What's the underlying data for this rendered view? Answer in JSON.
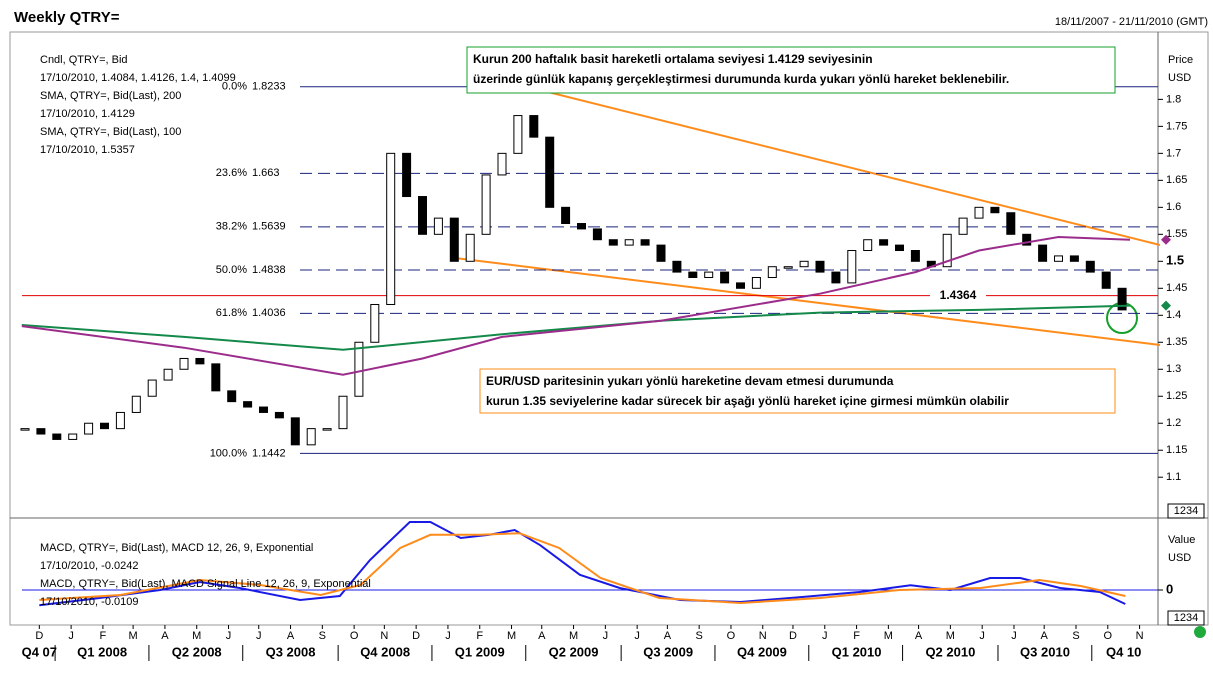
{
  "chart_data": [
    {
      "type": "candlestick",
      "title": "Weekly QTRY=",
      "subtitle": "18/11/2007 - 21/11/2010 (GMT)",
      "ylabel": "Price",
      "yunit": "USD",
      "box_label": "1234",
      "ylim": [
        1.03,
        1.91
      ],
      "yticks": [
        1.1,
        1.15,
        1.2,
        1.25,
        1.3,
        1.35,
        1.4,
        1.45,
        1.5,
        1.55,
        1.6,
        1.65,
        1.7,
        1.75,
        1.8
      ],
      "series": [
        {
          "name": "Cndl, QTRY=, Bid",
          "detail": "17/10/2010, 1.4084, 1.4126, 1.4, 1.4099",
          "color": "#000000",
          "values": [
            1.19,
            1.18,
            1.17,
            1.18,
            1.2,
            1.19,
            1.22,
            1.25,
            1.28,
            1.3,
            1.32,
            1.31,
            1.26,
            1.24,
            1.23,
            1.22,
            1.21,
            1.16,
            1.19,
            1.19,
            1.25,
            1.35,
            1.42,
            1.7,
            1.62,
            1.55,
            1.58,
            1.5,
            1.55,
            1.66,
            1.7,
            1.77,
            1.73,
            1.6,
            1.57,
            1.56,
            1.54,
            1.53,
            1.54,
            1.53,
            1.5,
            1.48,
            1.47,
            1.48,
            1.46,
            1.45,
            1.47,
            1.49,
            1.49,
            1.5,
            1.48,
            1.46,
            1.52,
            1.54,
            1.53,
            1.52,
            1.5,
            1.49,
            1.55,
            1.58,
            1.6,
            1.59,
            1.55,
            1.53,
            1.5,
            1.51,
            1.5,
            1.48,
            1.45,
            1.41
          ]
        },
        {
          "name": "SMA, QTRY=, Bid(Last), 200",
          "detail": "17/10/2010, 1.4129",
          "color": "#14894a",
          "x": [
            -0.2,
            10,
            20,
            30,
            40,
            50,
            60,
            69.5
          ],
          "values": [
            1.382,
            1.36,
            1.336,
            1.365,
            1.39,
            1.405,
            1.41,
            1.418
          ]
        },
        {
          "name": "SMA, QTRY=, Bid(Last), 100",
          "detail": "17/10/2010, 1.5357",
          "color": "#9b2c8c",
          "x": [
            -0.2,
            10,
            20,
            25,
            30,
            40,
            50,
            56,
            60,
            65,
            69.5
          ],
          "values": [
            1.38,
            1.34,
            1.29,
            1.32,
            1.36,
            1.39,
            1.44,
            1.48,
            1.52,
            1.545,
            1.54
          ]
        }
      ],
      "fibonacci": [
        {
          "pct": "0.0%",
          "value": 1.8233
        },
        {
          "pct": "23.6%",
          "value": 1.663
        },
        {
          "pct": "38.2%",
          "value": 1.5639
        },
        {
          "pct": "50.0%",
          "value": 1.4838
        },
        {
          "pct": "61.8%",
          "value": 1.4036
        },
        {
          "pct": "100.0%",
          "value": 1.1442
        }
      ],
      "reference_line": {
        "value": 1.4364,
        "color": "#e00000"
      },
      "annotations": [
        {
          "lines": [
            "Kurun 200 haftalık basit hareketli ortalama seviyesi 1.4129 seviyesinin",
            "üzerinde günlük kapanış gerçekleştirmesi durumunda kurda yukarı yönlü hareket beklenebilir."
          ],
          "color": "#14a02a"
        },
        {
          "lines": [
            "EUR/USD paritesinin yukarı yönlü hareketine devam etmesi durumunda",
            "kurun 1.35  seviyelerine kadar sürecek bir aşağı yönlü hareket içine girmesi mümkün olabilir"
          ],
          "color": "#ff8c1a"
        }
      ]
    },
    {
      "type": "line",
      "ylabel": "Value",
      "yunit": "USD",
      "box_label": "1234",
      "ylim": [
        -0.04,
        0.0875
      ],
      "yticks": [
        0
      ],
      "xticks": [
        {
          "value": 0.9,
          "label": "D"
        },
        {
          "value": 2.9,
          "label": "J"
        },
        {
          "value": 4.9,
          "label": "F"
        },
        {
          "value": 6.8,
          "label": "M"
        },
        {
          "value": 8.8,
          "label": "A"
        },
        {
          "value": 10.8,
          "label": "M"
        },
        {
          "value": 12.8,
          "label": "J"
        },
        {
          "value": 14.7,
          "label": "J"
        },
        {
          "value": 16.7,
          "label": "A"
        },
        {
          "value": 18.7,
          "label": "S"
        },
        {
          "value": 20.7,
          "label": "O"
        },
        {
          "value": 22.6,
          "label": "N"
        },
        {
          "value": 24.6,
          "label": "D"
        },
        {
          "value": 26.6,
          "label": "J"
        },
        {
          "value": 28.6,
          "label": "F"
        },
        {
          "value": 30.6,
          "label": "M"
        },
        {
          "value": 32.5,
          "label": "A"
        },
        {
          "value": 34.5,
          "label": "M"
        },
        {
          "value": 36.5,
          "label": "J"
        },
        {
          "value": 38.5,
          "label": "J"
        },
        {
          "value": 40.4,
          "label": "A"
        },
        {
          "value": 42.4,
          "label": "S"
        },
        {
          "value": 44.4,
          "label": "O"
        },
        {
          "value": 46.4,
          "label": "N"
        },
        {
          "value": 48.3,
          "label": "D"
        },
        {
          "value": 50.3,
          "label": "J"
        },
        {
          "value": 52.3,
          "label": "F"
        },
        {
          "value": 54.3,
          "label": "M"
        },
        {
          "value": 56.2,
          "label": "A"
        },
        {
          "value": 58.2,
          "label": "M"
        },
        {
          "value": 60.2,
          "label": "J"
        },
        {
          "value": 62.2,
          "label": "J"
        },
        {
          "value": 64.1,
          "label": "A"
        },
        {
          "value": 66.1,
          "label": "S"
        },
        {
          "value": 68.1,
          "label": "O"
        },
        {
          "value": 70.1,
          "label": "N"
        }
      ],
      "quarters": [
        "Q4 07",
        "Q1 2008",
        "Q2 2008",
        "Q3 2008",
        "Q4 2008",
        "Q1 2009",
        "Q2 2009",
        "Q3 2009",
        "Q4 2009",
        "Q1 2010",
        "Q2 2010",
        "Q3 2010",
        "Q4 10"
      ],
      "series": [
        {
          "name": "MACD, QTRY=, Bid(Last), MACD 12, 26, 9, Exponential",
          "detail": "17/10/2010, -0.0242",
          "color": "#1a1ae6",
          "x": [
            0.9,
            4.7,
            8.5,
            11,
            13.5,
            17.3,
            19.8,
            21.7,
            24.2,
            25.5,
            27.4,
            29.2,
            30.8,
            32.4,
            34.9,
            37.4,
            41.2,
            45,
            48.7,
            52.5,
            55.7,
            58.2,
            60.7,
            62.6,
            65.1,
            67.6,
            69.2
          ],
          "values": [
            -0.019,
            -0.01,
            0,
            0.01,
            0.0025,
            -0.0125,
            -0.0075,
            0.0375,
            0.085,
            0.085,
            0.065,
            0.069,
            0.075,
            0.056,
            0.019,
            0.0025,
            -0.0125,
            -0.015,
            -0.009,
            -0.0025,
            0.006,
            0,
            0.015,
            0.015,
            0.0025,
            -0.0025,
            -0.0175
          ]
        },
        {
          "name": "MACD, QTRY=, Bid(Last), MACD Signal Line 12, 26, 9, Exponential",
          "detail": "17/10/2010, -0.0109",
          "color": "#ff8c1a",
          "x": [
            0.9,
            6,
            11,
            14.8,
            18.6,
            21.1,
            23.6,
            25.5,
            28.6,
            31.1,
            33.6,
            36.2,
            39.9,
            45,
            50,
            55,
            60.1,
            63.8,
            66.4,
            69.2
          ],
          "values": [
            -0.0125,
            -0.00625,
            0.0125,
            0.00625,
            -0.00625,
            0.00625,
            0.0525,
            0.069,
            0.069,
            0.071,
            0.0525,
            0.015,
            -0.01,
            -0.01625,
            -0.01,
            0,
            0.0025,
            0.0125,
            0.005,
            -0.0075
          ]
        }
      ]
    }
  ]
}
